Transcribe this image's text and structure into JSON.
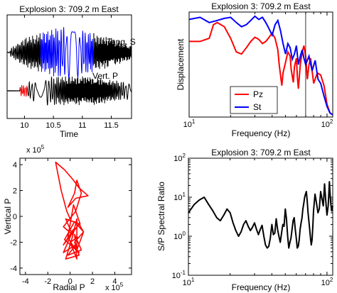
{
  "chart_data": [
    {
      "type": "line",
      "title": "Explosion 3:  709.2 m East",
      "xlabel": "Time",
      "ylabel": "",
      "xlim": [
        9.7,
        11.85
      ],
      "xticks": [
        "10",
        "10.5",
        "11",
        "11.5"
      ],
      "annotations": [
        "Tang. S",
        "Vert. P"
      ],
      "series": [
        {
          "name": "Tang. S",
          "color": "#0000ff",
          "window": [
            10.28,
            11.2
          ],
          "pre_color": "#000000"
        },
        {
          "name": "Vert. P",
          "color": "#ff0000",
          "window": [
            9.93,
            10.05
          ],
          "pre_color": "#000000"
        }
      ]
    },
    {
      "type": "line",
      "title": "Explosion 3:  709.2 m East",
      "xlabel": "Frequency (Hz)",
      "ylabel": "Displacement",
      "xscale": "log",
      "xlim": [
        10,
        110
      ],
      "xticks": [
        "10^1",
        "10^2"
      ],
      "legend": {
        "placement": "bottom-left",
        "entries": [
          "Pz",
          "St"
        ]
      },
      "vline_x": 70,
      "series": [
        {
          "name": "Pz",
          "color": "#ff0000",
          "x": [
            10,
            12,
            14,
            15,
            16,
            18,
            20,
            22,
            24,
            26,
            28,
            30,
            32,
            34,
            36,
            38,
            40,
            42,
            44,
            45,
            47,
            48,
            50,
            52,
            54,
            55,
            57,
            58,
            60,
            61,
            62,
            64,
            66,
            68,
            70,
            72,
            74,
            76,
            78,
            80,
            85,
            90,
            95,
            100,
            105,
            110
          ],
          "y": [
            0.72,
            0.72,
            0.75,
            0.88,
            0.9,
            0.86,
            0.75,
            0.62,
            0.6,
            0.66,
            0.72,
            0.76,
            0.74,
            0.7,
            0.72,
            0.76,
            0.8,
            0.75,
            0.64,
            0.5,
            0.3,
            0.42,
            0.52,
            0.62,
            0.58,
            0.45,
            0.33,
            0.48,
            0.56,
            0.38,
            0.27,
            0.5,
            0.62,
            0.68,
            0.58,
            0.36,
            0.5,
            0.56,
            0.44,
            0.32,
            0.42,
            0.4,
            0.3,
            0.12,
            0.04,
            0.02
          ]
        },
        {
          "name": "St",
          "color": "#0000ff",
          "x": [
            10,
            12,
            14,
            16,
            18,
            20,
            22,
            24,
            26,
            28,
            30,
            32,
            34,
            36,
            38,
            40,
            42,
            44,
            46,
            48,
            50,
            52,
            54,
            56,
            58,
            60,
            62,
            64,
            66,
            68,
            70,
            74,
            78,
            82,
            86,
            90,
            95,
            100,
            105,
            110
          ],
          "y": [
            0.93,
            0.95,
            0.9,
            0.92,
            0.94,
            0.95,
            0.9,
            0.86,
            0.88,
            0.92,
            0.96,
            0.93,
            0.95,
            0.9,
            0.84,
            0.78,
            0.88,
            0.92,
            0.82,
            0.7,
            0.6,
            0.7,
            0.66,
            0.55,
            0.6,
            0.68,
            0.5,
            0.58,
            0.64,
            0.56,
            0.5,
            0.58,
            0.44,
            0.54,
            0.36,
            0.32,
            0.2,
            0.1,
            0.04,
            0.02
          ]
        }
      ]
    },
    {
      "type": "line",
      "title": "",
      "xlabel": "Radial P",
      "ylabel": "Vertical P",
      "xlim": [
        -4.5,
        5.5
      ],
      "ylim": [
        -4.5,
        4.5
      ],
      "xticks": [
        "-4",
        "-2",
        "0",
        "2",
        "4"
      ],
      "yticks": [
        "4",
        "2",
        "0",
        "-2",
        "-4"
      ],
      "x_exponent": "x 10^5",
      "y_exponent": "x 10^5",
      "series": [
        {
          "name": "",
          "color": "#ff0000",
          "x": [
            0.0,
            -0.3,
            -0.8,
            -1.3,
            -0.5,
            0.3,
            0.8,
            1.6,
            0.5,
            -0.2,
            0.4,
            0.6,
            1.0,
            0.5,
            -0.6,
            0.2,
            -0.4,
            0.9,
            0.3,
            -0.2,
            0.2,
            0.8,
            -0.5,
            0.4,
            1.2,
            0.4,
            0.8,
            -0.4,
            0.2,
            0.6,
            0.6,
            1.2,
            0.8,
            -0.6,
            0.3,
            -0.6,
            0.5,
            -0.2,
            1.0,
            0.4,
            0.6,
            0.0,
            0.7
          ],
          "y": [
            -0.2,
            0.4,
            2.0,
            4.2,
            3.6,
            2.8,
            2.2,
            1.6,
            1.4,
            0.7,
            1.8,
            2.8,
            1.8,
            0.4,
            -0.8,
            -1.4,
            -0.2,
            -0.6,
            0.9,
            -1.6,
            -2.2,
            -2.8,
            -1.8,
            -0.4,
            -1.2,
            -2.0,
            -3.0,
            -3.3,
            -1.6,
            -0.2,
            -2.6,
            -1.2,
            -0.6,
            -2.2,
            -1.0,
            -2.8,
            -2.2,
            -3.0,
            -2.6,
            -1.4,
            -3.3,
            -2.0,
            -1.6
          ]
        }
      ]
    },
    {
      "type": "line",
      "title": "Explosion 3:  709.2 m East",
      "xlabel": "Frequency (Hz)",
      "ylabel": "S/P Spectral Ratio",
      "xscale": "log",
      "yscale": "log",
      "xlim": [
        10,
        110
      ],
      "ylim": [
        0.1,
        100
      ],
      "xticks": [
        "10^1",
        "10^2"
      ],
      "yticks": [
        "10^2",
        "10^1",
        "10^0",
        "10^-1"
      ],
      "series": [
        {
          "name": "",
          "color": "#000000",
          "x": [
            10,
            11,
            12,
            13,
            14,
            15,
            16,
            17,
            18,
            19,
            20,
            21,
            22,
            23,
            24,
            25,
            26,
            27,
            28,
            29,
            30,
            31,
            32,
            33,
            34,
            35,
            36,
            37,
            38,
            39,
            40,
            41,
            42,
            43,
            44,
            45,
            46,
            47,
            48,
            49,
            50,
            51,
            52,
            53,
            54,
            55,
            56,
            57,
            58,
            59,
            60,
            61,
            62,
            63,
            64,
            65,
            66,
            67,
            68,
            69,
            70,
            71,
            72,
            73,
            74,
            75,
            76,
            77,
            78,
            79,
            80,
            82,
            84,
            86,
            88,
            90,
            92,
            94,
            96,
            98,
            100,
            102,
            104,
            106,
            108,
            110
          ],
          "y": [
            4.0,
            6.5,
            8.5,
            10.0,
            6.5,
            4.5,
            3.0,
            2.5,
            3.5,
            5.0,
            4.0,
            2.2,
            1.4,
            1.0,
            1.3,
            2.0,
            2.5,
            1.8,
            1.4,
            1.7,
            2.2,
            1.5,
            1.1,
            1.5,
            1.9,
            1.0,
            0.6,
            0.5,
            0.55,
            0.9,
            2.0,
            1.1,
            1.2,
            2.8,
            1.5,
            1.0,
            0.7,
            1.2,
            2.0,
            1.8,
            5.0,
            2.8,
            1.0,
            0.5,
            0.7,
            0.9,
            1.5,
            2.5,
            3.0,
            1.5,
            0.9,
            0.5,
            0.55,
            0.8,
            1.5,
            2.2,
            3.0,
            5.0,
            7.0,
            10.0,
            12.0,
            14.0,
            8.0,
            4.0,
            2.5,
            1.5,
            0.9,
            0.6,
            0.8,
            1.8,
            4.5,
            12.0,
            7.0,
            4.0,
            5.0,
            14.0,
            9.0,
            6.0,
            22.0,
            8.0,
            3.5,
            6.0,
            25.0,
            8.0,
            4.5,
            6.0
          ]
        }
      ]
    }
  ]
}
